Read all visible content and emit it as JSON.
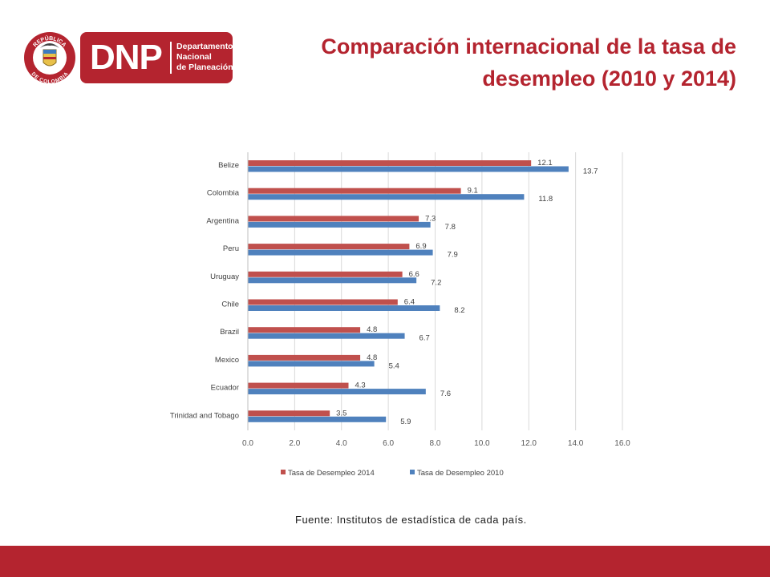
{
  "header": {
    "logo_letters": "DNP",
    "logo_name": [
      "Departamento",
      "Nacional",
      "de Planeación"
    ],
    "seal_top_text": "REPÚBLICA",
    "seal_bottom_text": "DE COLOMBIA",
    "title_line1": "Comparación internacional de la tasa de",
    "title_line2": "desempleo (2010 y 2014)"
  },
  "source_note": "Fuente: Institutos de estadística de cada país.",
  "colors": {
    "brand": "#b4242f",
    "series_2014": "#c0504d",
    "series_2010": "#4f81bd"
  },
  "chart_data": {
    "type": "bar",
    "orientation": "horizontal",
    "categories": [
      "Belize",
      "Colombia",
      "Argentina",
      "Peru",
      "Uruguay",
      "Chile",
      "Brazil",
      "Mexico",
      "Ecuador",
      "Trinidad and Tobago"
    ],
    "series": [
      {
        "name": "Tasa de Desempleo 2014",
        "values": [
          12.1,
          9.1,
          7.3,
          6.9,
          6.6,
          6.4,
          4.8,
          4.8,
          4.3,
          3.5
        ]
      },
      {
        "name": "Tasa de Desempleo 2010",
        "values": [
          13.7,
          11.8,
          7.8,
          7.9,
          7.2,
          8.2,
          6.7,
          5.4,
          7.6,
          5.9
        ]
      }
    ],
    "xlim": [
      0,
      16
    ],
    "xticks": [
      "0.0",
      "2.0",
      "4.0",
      "6.0",
      "8.0",
      "10.0",
      "12.0",
      "14.0",
      "16.0"
    ],
    "grid": true,
    "legend_position": "bottom"
  }
}
